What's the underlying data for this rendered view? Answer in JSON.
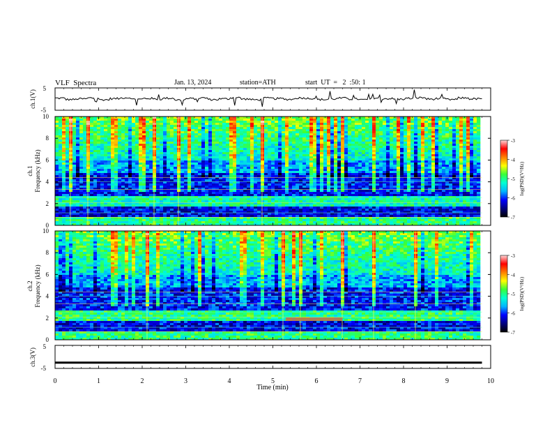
{
  "header": {
    "title": "VLF  Spectra",
    "date": "Jan. 13, 2024",
    "station": "station=ATH",
    "start": "start  UT  =   2  :50: 1"
  },
  "chart_data": [
    {
      "type": "line",
      "name": "ch1-waveform",
      "ylabel": "ch.1(V)",
      "ylim": [
        -5,
        5
      ],
      "yticks": [
        "5",
        "-5"
      ],
      "x": [
        0,
        0.25,
        0.5,
        0.75,
        1,
        1.25,
        1.5,
        1.75,
        2,
        2.25,
        2.5,
        2.75,
        3,
        3.25,
        3.5,
        3.75,
        4,
        4.25,
        4.5,
        4.75,
        5,
        5.25,
        5.5,
        5.75,
        6,
        6.25,
        6.5,
        6.75,
        7,
        7.25,
        7.5,
        7.75,
        8,
        8.25,
        8.5,
        8.75,
        9,
        9.25,
        9.5,
        9.75
      ],
      "y": [
        0.4,
        -0.2,
        0.1,
        0.5,
        -0.3,
        0.2,
        0.6,
        -0.1,
        0.3,
        0.0,
        0.4,
        -0.4,
        0.2,
        0.5,
        -0.2,
        0.1,
        0.6,
        0.0,
        -0.3,
        0.4,
        0.2,
        -0.1,
        0.5,
        0.3,
        -0.2,
        0.1,
        0.4,
        0.0,
        -0.3,
        0.5,
        0.2,
        -0.1,
        0.3,
        0.6,
        0.0,
        0.2,
        -0.2,
        0.5,
        0.1,
        0.3
      ]
    },
    {
      "type": "heatmap",
      "name": "ch1-spectrogram",
      "ylabel_lines": [
        "ch.1",
        "Frequency  (kHz)"
      ],
      "ylim": [
        0,
        10
      ],
      "yticks": [
        "0",
        "2",
        "4",
        "6",
        "8",
        "10"
      ],
      "colorbar": {
        "label": "log(PSD)(V²/Hz)",
        "range": [
          -7,
          -3
        ],
        "ticks": [
          "-3",
          "-4",
          "-5",
          "-6",
          "-7"
        ]
      }
    },
    {
      "type": "heatmap",
      "name": "ch2-spectrogram",
      "ylabel_lines": [
        "ch.2",
        "Frequency  (kHz)"
      ],
      "ylim": [
        0,
        10
      ],
      "yticks": [
        "0",
        "2",
        "4",
        "6",
        "8",
        "10"
      ],
      "colorbar": {
        "label": "log(PSD)(V²/Hz)",
        "range": [
          -7,
          -3
        ],
        "ticks": [
          "-3",
          "-4",
          "-5",
          "-6",
          "-7"
        ]
      }
    },
    {
      "type": "line",
      "name": "ch3-waveform",
      "ylabel": "ch.3(V)",
      "ylim": [
        -5,
        5
      ],
      "yticks": [
        "5",
        "-5"
      ],
      "x": [
        0,
        9.8
      ],
      "y": [
        -2.5,
        -2.5
      ]
    }
  ],
  "xaxis": {
    "label": "Time  (min)",
    "range": [
      0,
      10
    ],
    "ticks": [
      "0",
      "1",
      "2",
      "3",
      "4",
      "5",
      "6",
      "7",
      "8",
      "9",
      "10"
    ]
  },
  "colors": {
    "background": "#ffffff",
    "axis": "#000000",
    "colormap": [
      "#000000",
      "#00007f",
      "#0000ff",
      "#00b4ff",
      "#00ffd4",
      "#38ff38",
      "#ffff00",
      "#ff7f00",
      "#ff0000",
      "#ffd8d8"
    ]
  }
}
